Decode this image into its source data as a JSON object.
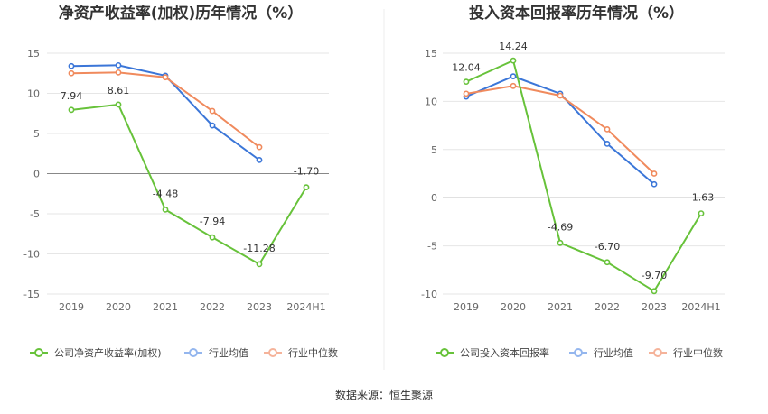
{
  "source_label": "数据来源：恒生聚源",
  "colors": {
    "company": "#67c23a",
    "average": "#3b76d8",
    "median": "#f08a5d",
    "legend_average": "#94b6ee",
    "legend_median": "#f5b39a"
  },
  "chart_data": [
    {
      "type": "line",
      "title": "净资产收益率(加权)历年情况（%）",
      "categories": [
        "2019",
        "2020",
        "2021",
        "2022",
        "2023",
        "2024H1"
      ],
      "ylim": [
        -15,
        15
      ],
      "yticks": [
        "15",
        "10",
        "5",
        "0",
        "-5",
        "-10",
        "-15"
      ],
      "grid": true,
      "legend_position": "bottom",
      "series": [
        {
          "name": "公司净资产收益率(加权)",
          "values": [
            7.94,
            8.61,
            -4.48,
            -7.94,
            -11.28,
            -1.7
          ],
          "labels": [
            "7.94",
            "8.61",
            "-4.48",
            "-7.94",
            "-11.28",
            "-1.70"
          ]
        },
        {
          "name": "行业均值",
          "values": [
            13.4,
            13.5,
            12.2,
            6.0,
            1.7,
            null
          ]
        },
        {
          "name": "行业中位数",
          "values": [
            12.5,
            12.6,
            12.0,
            7.8,
            3.3,
            null
          ]
        }
      ]
    },
    {
      "type": "line",
      "title": "投入资本回报率历年情况（%）",
      "categories": [
        "2019",
        "2020",
        "2021",
        "2022",
        "2023",
        "2024H1"
      ],
      "ylim": [
        -10,
        15
      ],
      "yticks": [
        "15",
        "10",
        "5",
        "0",
        "-5",
        "-10"
      ],
      "grid": true,
      "legend_position": "bottom",
      "series": [
        {
          "name": "公司投入资本回报率",
          "values": [
            12.04,
            14.24,
            -4.69,
            -6.7,
            -9.7,
            -1.63
          ],
          "labels": [
            "12.04",
            "14.24",
            "-4.69",
            "-6.70",
            "-9.70",
            "-1.63"
          ]
        },
        {
          "name": "行业均值",
          "values": [
            10.5,
            12.6,
            10.8,
            5.6,
            1.4,
            null
          ]
        },
        {
          "name": "行业中位数",
          "values": [
            10.8,
            11.6,
            10.6,
            7.1,
            2.5,
            null
          ]
        }
      ]
    }
  ]
}
